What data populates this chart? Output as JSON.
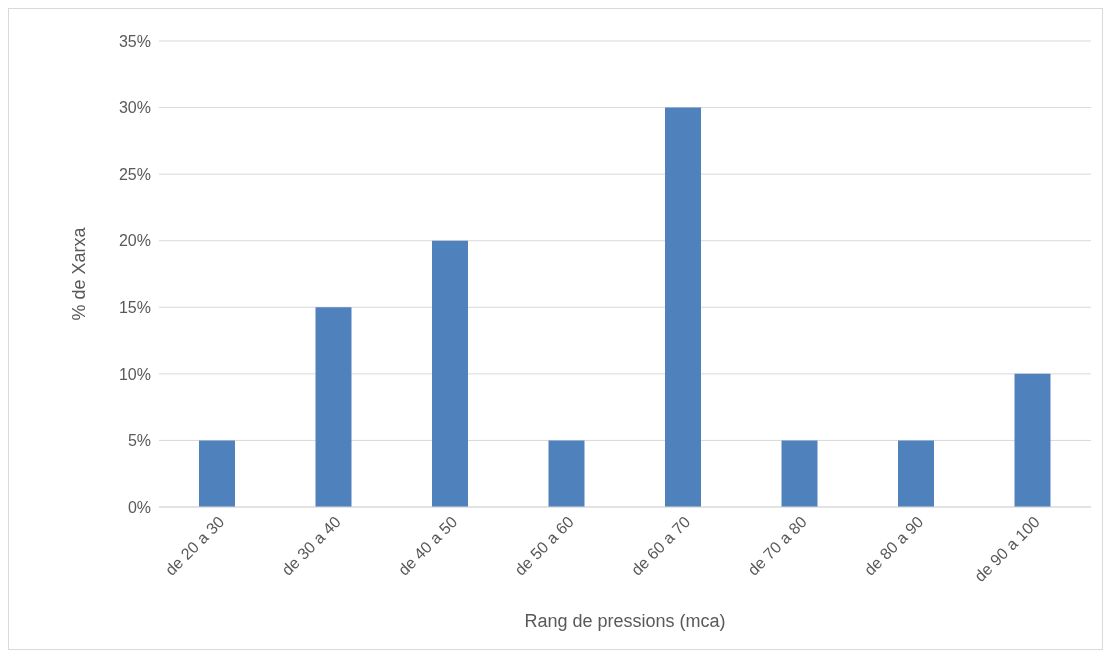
{
  "chart_data": {
    "type": "bar",
    "categories": [
      "de 20 a 30",
      "de 30 a 40",
      "de 40 a 50",
      "de 50 a 60",
      "de 60 a 70",
      "de 70 a 80",
      "de 80 a 90",
      "de 90 a 100"
    ],
    "values": [
      5,
      15,
      20,
      5,
      30,
      5,
      5,
      10
    ],
    "color": "#4f81bd",
    "xlabel": "Rang de pressions (mca)",
    "ylabel": "% de Xarxa",
    "ylim": [
      0,
      35
    ],
    "yticks": [
      {
        "value": 0,
        "label": "0%"
      },
      {
        "value": 5,
        "label": "5%"
      },
      {
        "value": 10,
        "label": "10%"
      },
      {
        "value": 15,
        "label": "15%"
      },
      {
        "value": 20,
        "label": "20%"
      },
      {
        "value": 25,
        "label": "25%"
      },
      {
        "value": 30,
        "label": "30%"
      },
      {
        "value": 35,
        "label": "35%"
      }
    ],
    "grid": "y"
  }
}
